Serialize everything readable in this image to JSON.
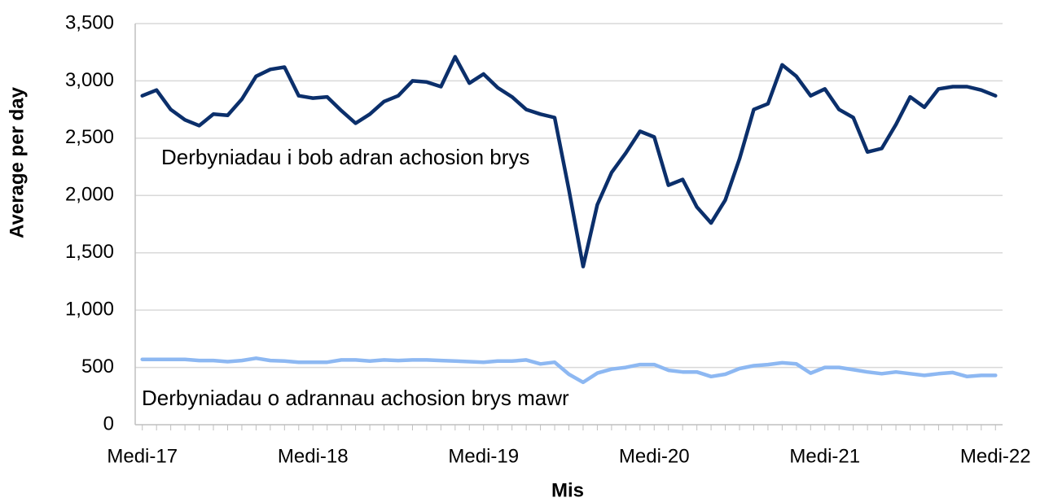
{
  "chart_data": {
    "type": "line",
    "x_label": "Mis",
    "y_label": "Average per day",
    "categories": [
      "Medi-17",
      null,
      null,
      null,
      null,
      null,
      null,
      null,
      null,
      null,
      null,
      null,
      "Medi-18",
      null,
      null,
      null,
      null,
      null,
      null,
      null,
      null,
      null,
      null,
      null,
      "Medi-19",
      null,
      null,
      null,
      null,
      null,
      null,
      null,
      null,
      null,
      null,
      null,
      "Medi-20",
      null,
      null,
      null,
      null,
      null,
      null,
      null,
      null,
      null,
      null,
      null,
      "Medi-21",
      null,
      null,
      null,
      null,
      null,
      null,
      null,
      null,
      null,
      null,
      null,
      "Medi-22"
    ],
    "series": [
      {
        "name": "Derbyniadau i bob adran achosion brys",
        "color": "#0b2f6b",
        "values": [
          2870,
          2920,
          2750,
          2660,
          2610,
          2710,
          2700,
          2840,
          3040,
          3100,
          3120,
          2870,
          2850,
          2860,
          2740,
          2630,
          2710,
          2820,
          2870,
          3000,
          2990,
          2950,
          3210,
          2980,
          3060,
          2940,
          2860,
          2750,
          2710,
          2680,
          2050,
          1380,
          1920,
          2200,
          2370,
          2560,
          2510,
          2090,
          2140,
          1900,
          1760,
          1960,
          2320,
          2750,
          2800,
          3140,
          3040,
          2870,
          2930,
          2750,
          2680,
          2380,
          2410,
          2620,
          2860,
          2770,
          2930,
          2950,
          2950,
          2920,
          2870
        ]
      },
      {
        "name": "Derbyniadau o adrannau achosion brys mawr",
        "color": "#8db8f2",
        "values": [
          570,
          570,
          570,
          570,
          560,
          560,
          550,
          560,
          580,
          560,
          555,
          545,
          545,
          545,
          565,
          565,
          555,
          565,
          560,
          565,
          565,
          560,
          555,
          550,
          545,
          555,
          555,
          565,
          530,
          545,
          440,
          370,
          450,
          485,
          500,
          525,
          525,
          475,
          460,
          460,
          420,
          440,
          490,
          515,
          525,
          540,
          530,
          450,
          500,
          500,
          480,
          460,
          445,
          460,
          445,
          430,
          445,
          455,
          420,
          430,
          430
        ]
      }
    ],
    "ylim": [
      0,
      3500
    ],
    "yticks": [
      0,
      500,
      {
        "value": 1000,
        "label": "1,000"
      },
      {
        "value": 1500,
        "label": "1,500"
      },
      {
        "value": 2000,
        "label": "2,000"
      },
      {
        "value": 2500,
        "label": "2,500"
      },
      {
        "value": 3000,
        "label": "3,000"
      },
      {
        "value": 3500,
        "label": "3,500"
      }
    ],
    "grid": true
  }
}
